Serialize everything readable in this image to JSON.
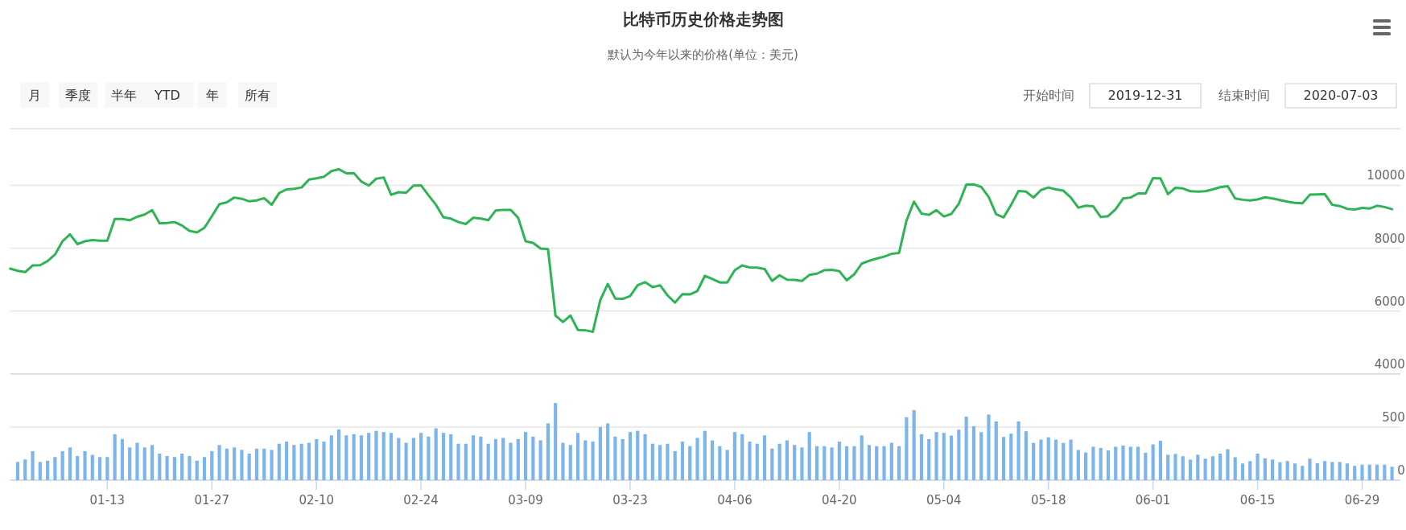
{
  "chart_data": [
    {
      "type": "line",
      "title": "比特币历史价格走势图",
      "subtitle": "默认为今年以来的价格(单位：美元)",
      "annotations": [
        "月",
        "季度",
        "半年",
        "YTD",
        "年",
        "所有",
        "开始时间",
        "2019-12-31",
        "结束时间",
        "2020-07-03"
      ],
      "x": [
        "2019-12-31",
        "2020-01-01",
        "2020-01-02",
        "2020-01-03",
        "2020-01-04",
        "2020-01-05",
        "2020-01-06",
        "2020-01-07",
        "2020-01-08",
        "2020-01-09",
        "2020-01-10",
        "2020-01-11",
        "2020-01-12",
        "2020-01-13",
        "2020-01-14",
        "2020-01-15",
        "2020-01-16",
        "2020-01-17",
        "2020-01-18",
        "2020-01-19",
        "2020-01-20",
        "2020-01-21",
        "2020-01-22",
        "2020-01-23",
        "2020-01-24",
        "2020-01-25",
        "2020-01-26",
        "2020-01-27",
        "2020-01-28",
        "2020-01-29",
        "2020-01-30",
        "2020-01-31",
        "2020-02-01",
        "2020-02-02",
        "2020-02-03",
        "2020-02-04",
        "2020-02-05",
        "2020-02-06",
        "2020-02-07",
        "2020-02-08",
        "2020-02-09",
        "2020-02-10",
        "2020-02-11",
        "2020-02-12",
        "2020-02-13",
        "2020-02-14",
        "2020-02-15",
        "2020-02-16",
        "2020-02-17",
        "2020-02-18",
        "2020-02-19",
        "2020-02-20",
        "2020-02-21",
        "2020-02-22",
        "2020-02-23",
        "2020-02-24",
        "2020-02-25",
        "2020-02-26",
        "2020-02-27",
        "2020-02-28",
        "2020-02-29",
        "2020-03-01",
        "2020-03-02",
        "2020-03-03",
        "2020-03-04",
        "2020-03-05",
        "2020-03-06",
        "2020-03-07",
        "2020-03-08",
        "2020-03-09",
        "2020-03-10",
        "2020-03-11",
        "2020-03-12",
        "2020-03-13",
        "2020-03-14",
        "2020-03-15",
        "2020-03-16",
        "2020-03-17",
        "2020-03-18",
        "2020-03-19",
        "2020-03-20",
        "2020-03-21",
        "2020-03-22",
        "2020-03-23",
        "2020-03-24",
        "2020-03-25",
        "2020-03-26",
        "2020-03-27",
        "2020-03-28",
        "2020-03-29",
        "2020-03-30",
        "2020-03-31",
        "2020-04-01",
        "2020-04-02",
        "2020-04-03",
        "2020-04-04",
        "2020-04-05",
        "2020-04-06",
        "2020-04-07",
        "2020-04-08",
        "2020-04-09",
        "2020-04-10",
        "2020-04-11",
        "2020-04-12",
        "2020-04-13",
        "2020-04-14",
        "2020-04-15",
        "2020-04-16",
        "2020-04-17",
        "2020-04-18",
        "2020-04-19",
        "2020-04-20",
        "2020-04-21",
        "2020-04-22",
        "2020-04-23",
        "2020-04-24",
        "2020-04-25",
        "2020-04-26",
        "2020-04-27",
        "2020-04-28",
        "2020-04-29",
        "2020-04-30",
        "2020-05-01",
        "2020-05-02",
        "2020-05-03",
        "2020-05-04",
        "2020-05-05",
        "2020-05-06",
        "2020-05-07",
        "2020-05-08",
        "2020-05-09",
        "2020-05-10",
        "2020-05-11",
        "2020-05-12",
        "2020-05-13",
        "2020-05-14",
        "2020-05-15",
        "2020-05-16",
        "2020-05-17",
        "2020-05-18",
        "2020-05-19",
        "2020-05-20",
        "2020-05-21",
        "2020-05-22",
        "2020-05-23",
        "2020-05-24",
        "2020-05-25",
        "2020-05-26",
        "2020-05-27",
        "2020-05-28",
        "2020-05-29",
        "2020-05-30",
        "2020-05-31",
        "2020-06-01",
        "2020-06-02",
        "2020-06-03",
        "2020-06-04",
        "2020-06-05",
        "2020-06-06",
        "2020-06-07",
        "2020-06-08",
        "2020-06-09",
        "2020-06-10",
        "2020-06-11",
        "2020-06-12",
        "2020-06-13",
        "2020-06-14",
        "2020-06-15",
        "2020-06-16",
        "2020-06-17",
        "2020-06-18",
        "2020-06-19",
        "2020-06-20",
        "2020-06-21",
        "2020-06-22",
        "2020-06-23",
        "2020-06-24",
        "2020-06-25",
        "2020-06-26",
        "2020-06-27",
        "2020-06-28",
        "2020-06-29",
        "2020-06-30",
        "2020-07-01",
        "2020-07-02",
        "2020-07-03"
      ],
      "series": [
        {
          "color": "#2eb454",
          "values": [
            7350,
            7280,
            7240,
            7450,
            7460,
            7590,
            7800,
            8220,
            8440,
            8130,
            8220,
            8260,
            8240,
            8240,
            8930,
            8930,
            8890,
            9000,
            9070,
            9210,
            8790,
            8800,
            8830,
            8720,
            8550,
            8500,
            8650,
            9020,
            9400,
            9460,
            9610,
            9570,
            9490,
            9520,
            9590,
            9380,
            9750,
            9870,
            9890,
            9930,
            10180,
            10220,
            10270,
            10450,
            10510,
            10380,
            10390,
            10120,
            9990,
            10210,
            10250,
            9700,
            9780,
            9760,
            9990,
            10000,
            9680,
            9380,
            8980,
            8940,
            8830,
            8770,
            8970,
            8940,
            8890,
            9200,
            9220,
            9220,
            8970,
            8220,
            8170,
            7990,
            7970,
            5860,
            5650,
            5860,
            5400,
            5390,
            5340,
            6350,
            6860,
            6400,
            6390,
            6480,
            6820,
            6920,
            6760,
            6820,
            6500,
            6270,
            6540,
            6530,
            6640,
            7120,
            7020,
            6910,
            6910,
            7300,
            7450,
            7390,
            7380,
            7340,
            6960,
            7140,
            7000,
            6990,
            6960,
            7150,
            7190,
            7300,
            7310,
            7270,
            6980,
            7170,
            7510,
            7600,
            7670,
            7730,
            7820,
            7850,
            8880,
            9480,
            9100,
            9060,
            9210,
            9010,
            9090,
            9410,
            10020,
            10030,
            9950,
            9630,
            9080,
            8980,
            9380,
            9820,
            9800,
            9610,
            9850,
            9930,
            9870,
            9830,
            9610,
            9290,
            9350,
            9330,
            8990,
            9020,
            9240,
            9580,
            9610,
            9740,
            9740,
            10230,
            10220,
            9720,
            9920,
            9900,
            9810,
            9800,
            9810,
            9870,
            9940,
            9970,
            9580,
            9540,
            9520,
            9550,
            9620,
            9580,
            9530,
            9480,
            9440,
            9430,
            9700,
            9710,
            9720,
            9380,
            9340,
            9250,
            9230,
            9280,
            9260,
            9350,
            9310,
            9240
          ]
        }
      ],
      "xlim": [
        "2019-12-31",
        "2020-07-04"
      ],
      "ylim": [
        4000,
        11800
      ],
      "yticks": [
        4000,
        6000,
        8000,
        10000
      ],
      "tick_labels": "y",
      "grid": "y"
    },
    {
      "type": "bar",
      "x": [
        "2020-01-01",
        "2020-01-02",
        "2020-01-03",
        "2020-01-04",
        "2020-01-05",
        "2020-01-06",
        "2020-01-07",
        "2020-01-08",
        "2020-01-09",
        "2020-01-10",
        "2020-01-11",
        "2020-01-12",
        "2020-01-13",
        "2020-01-14",
        "2020-01-15",
        "2020-01-16",
        "2020-01-17",
        "2020-01-18",
        "2020-01-19",
        "2020-01-20",
        "2020-01-21",
        "2020-01-22",
        "2020-01-23",
        "2020-01-24",
        "2020-01-25",
        "2020-01-26",
        "2020-01-27",
        "2020-01-28",
        "2020-01-29",
        "2020-01-30",
        "2020-01-31",
        "2020-02-01",
        "2020-02-02",
        "2020-02-03",
        "2020-02-04",
        "2020-02-05",
        "2020-02-06",
        "2020-02-07",
        "2020-02-08",
        "2020-02-09",
        "2020-02-10",
        "2020-02-11",
        "2020-02-12",
        "2020-02-13",
        "2020-02-14",
        "2020-02-15",
        "2020-02-16",
        "2020-02-17",
        "2020-02-18",
        "2020-02-19",
        "2020-02-20",
        "2020-02-21",
        "2020-02-22",
        "2020-02-23",
        "2020-02-24",
        "2020-02-25",
        "2020-02-26",
        "2020-02-27",
        "2020-02-28",
        "2020-02-29",
        "2020-03-01",
        "2020-03-02",
        "2020-03-03",
        "2020-03-04",
        "2020-03-05",
        "2020-03-06",
        "2020-03-07",
        "2020-03-08",
        "2020-03-09",
        "2020-03-10",
        "2020-03-11",
        "2020-03-12",
        "2020-03-13",
        "2020-03-14",
        "2020-03-15",
        "2020-03-16",
        "2020-03-17",
        "2020-03-18",
        "2020-03-19",
        "2020-03-20",
        "2020-03-21",
        "2020-03-22",
        "2020-03-23",
        "2020-03-24",
        "2020-03-25",
        "2020-03-26",
        "2020-03-27",
        "2020-03-28",
        "2020-03-29",
        "2020-03-30",
        "2020-03-31",
        "2020-04-01",
        "2020-04-02",
        "2020-04-03",
        "2020-04-04",
        "2020-04-05",
        "2020-04-06",
        "2020-04-07",
        "2020-04-08",
        "2020-04-09",
        "2020-04-10",
        "2020-04-11",
        "2020-04-12",
        "2020-04-13",
        "2020-04-14",
        "2020-04-15",
        "2020-04-16",
        "2020-04-17",
        "2020-04-18",
        "2020-04-19",
        "2020-04-20",
        "2020-04-21",
        "2020-04-22",
        "2020-04-23",
        "2020-04-24",
        "2020-04-25",
        "2020-04-26",
        "2020-04-27",
        "2020-04-28",
        "2020-04-29",
        "2020-04-30",
        "2020-05-01",
        "2020-05-02",
        "2020-05-03",
        "2020-05-04",
        "2020-05-05",
        "2020-05-06",
        "2020-05-07",
        "2020-05-08",
        "2020-05-09",
        "2020-05-10",
        "2020-05-11",
        "2020-05-12",
        "2020-05-13",
        "2020-05-14",
        "2020-05-15",
        "2020-05-16",
        "2020-05-17",
        "2020-05-18",
        "2020-05-19",
        "2020-05-20",
        "2020-05-21",
        "2020-05-22",
        "2020-05-23",
        "2020-05-24",
        "2020-05-25",
        "2020-05-26",
        "2020-05-27",
        "2020-05-28",
        "2020-05-29",
        "2020-05-30",
        "2020-05-31",
        "2020-06-01",
        "2020-06-02",
        "2020-06-03",
        "2020-06-04",
        "2020-06-05",
        "2020-06-06",
        "2020-06-07",
        "2020-06-08",
        "2020-06-09",
        "2020-06-10",
        "2020-06-11",
        "2020-06-12",
        "2020-06-13",
        "2020-06-14",
        "2020-06-15",
        "2020-06-16",
        "2020-06-17",
        "2020-06-18",
        "2020-06-19",
        "2020-06-20",
        "2020-06-21",
        "2020-06-22",
        "2020-06-23",
        "2020-06-24",
        "2020-06-25",
        "2020-06-26",
        "2020-06-27",
        "2020-06-28",
        "2020-06-29",
        "2020-06-30",
        "2020-07-01",
        "2020-07-02",
        "2020-07-03"
      ],
      "series": [
        {
          "color": "#7cb5ec",
          "values": [
            172,
            195,
            273,
            172,
            183,
            218,
            273,
            308,
            227,
            273,
            238,
            218,
            218,
            433,
            387,
            308,
            352,
            308,
            331,
            250,
            227,
            218,
            250,
            227,
            183,
            218,
            273,
            331,
            297,
            308,
            285,
            250,
            297,
            297,
            285,
            343,
            363,
            331,
            343,
            352,
            387,
            363,
            422,
            477,
            422,
            433,
            422,
            445,
            465,
            453,
            445,
            398,
            352,
            398,
            445,
            410,
            488,
            445,
            433,
            343,
            343,
            422,
            410,
            343,
            387,
            398,
            352,
            387,
            453,
            410,
            375,
            535,
            727,
            352,
            331,
            445,
            375,
            363,
            500,
            535,
            410,
            387,
            453,
            465,
            433,
            343,
            331,
            343,
            273,
            363,
            320,
            398,
            465,
            375,
            320,
            285,
            453,
            433,
            363,
            343,
            422,
            297,
            343,
            375,
            331,
            308,
            453,
            320,
            320,
            308,
            363,
            320,
            320,
            422,
            331,
            320,
            320,
            352,
            320,
            593,
            660,
            433,
            387,
            453,
            445,
            419,
            475,
            598,
            508,
            452,
            618,
            553,
            407,
            438,
            553,
            461,
            351,
            382,
            404,
            382,
            351,
            382,
            284,
            261,
            315,
            303,
            281,
            315,
            326,
            315,
            315,
            258,
            337,
            371,
            239,
            247,
            225,
            194,
            239,
            202,
            225,
            250,
            292,
            216,
            157,
            180,
            250,
            205,
            194,
            169,
            180,
            157,
            135,
            202,
            160,
            180,
            171,
            171,
            157,
            135,
            146,
            146,
            146,
            146,
            126
          ]
        }
      ],
      "xlim": [
        "2019-12-31",
        "2020-07-04"
      ],
      "xticks": [
        {
          "value": "2020-01-13",
          "label": "01-13"
        },
        {
          "value": "2020-01-27",
          "label": "01-27"
        },
        {
          "value": "2020-02-10",
          "label": "02-10"
        },
        {
          "value": "2020-02-24",
          "label": "02-24"
        },
        {
          "value": "2020-03-09",
          "label": "03-09"
        },
        {
          "value": "2020-03-23",
          "label": "03-23"
        },
        {
          "value": "2020-04-06",
          "label": "04-06"
        },
        {
          "value": "2020-04-20",
          "label": "04-20"
        },
        {
          "value": "2020-05-04",
          "label": "05-04"
        },
        {
          "value": "2020-05-18",
          "label": "05-18"
        },
        {
          "value": "2020-06-01",
          "label": "06-01"
        },
        {
          "value": "2020-06-15",
          "label": "06-15"
        },
        {
          "value": "2020-06-29",
          "label": "06-29"
        }
      ],
      "ylim": [
        0,
        1000
      ],
      "yticks": [
        0,
        500
      ],
      "grid": "y"
    }
  ]
}
